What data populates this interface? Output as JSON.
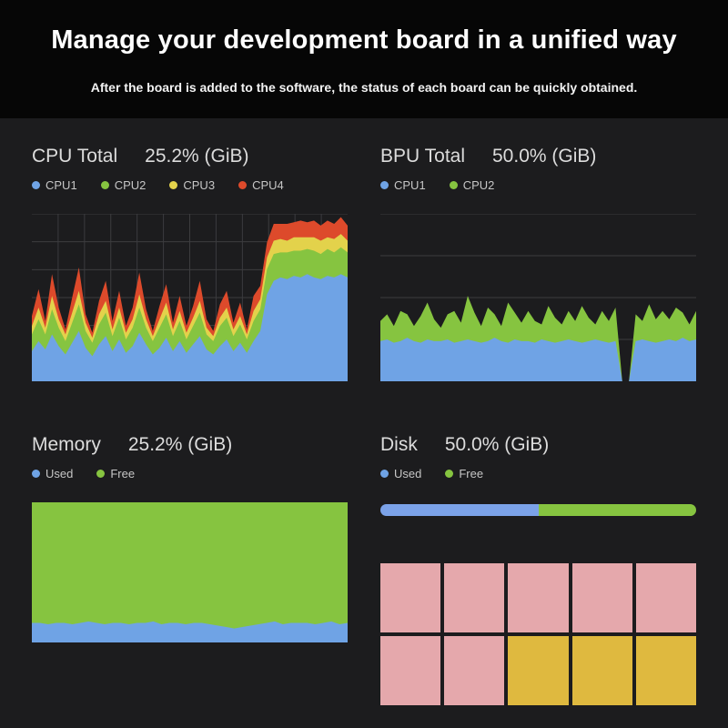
{
  "header": {
    "title": "Manage your development board in a unified way",
    "subtitle": "After the board is added to the software, the status of each board can be quickly obtained."
  },
  "panels": [
    {
      "title": "CPU Total",
      "value": "25.2% (GiB)",
      "legend": [
        {
          "label": "CPU1",
          "color": "#6FA3E5"
        },
        {
          "label": "CPU2",
          "color": "#86C440"
        },
        {
          "label": "CPU3",
          "color": "#E3D24B"
        },
        {
          "label": "CPU4",
          "color": "#DD4A2B"
        }
      ]
    },
    {
      "title": "BPU Total",
      "value": "50.0% (GiB)",
      "legend": [
        {
          "label": "CPU1",
          "color": "#6FA3E5"
        },
        {
          "label": "CPU2",
          "color": "#86C440"
        }
      ]
    },
    {
      "title": "Memory",
      "value": "25.2% (GiB)",
      "legend": [
        {
          "label": "Used",
          "color": "#6FA3E5"
        },
        {
          "label": "Free",
          "color": "#86C440"
        }
      ]
    },
    {
      "title": "Disk",
      "value": "50.0% (GiB)",
      "legend": [
        {
          "label": "Used",
          "color": "#6FA3E5"
        },
        {
          "label": "Free",
          "color": "#86C440"
        }
      ]
    }
  ],
  "chart_data": [
    {
      "type": "area",
      "title": "CPU Total",
      "stacked": true,
      "ylim": [
        0,
        100
      ],
      "grid": {
        "h_lines": 5,
        "v_lines": 11
      },
      "series": [
        {
          "name": "CPU1",
          "color": "#6FA3E5",
          "values": [
            18,
            24,
            19,
            28,
            21,
            16,
            23,
            30,
            20,
            15,
            22,
            27,
            18,
            25,
            17,
            21,
            29,
            22,
            16,
            20,
            26,
            18,
            24,
            17,
            22,
            27,
            19,
            16,
            21,
            25,
            18,
            23,
            17,
            24,
            30,
            52,
            60,
            62,
            61,
            63,
            62,
            64,
            62,
            61,
            63,
            62,
            64,
            62
          ]
        },
        {
          "name": "CPU2",
          "color": "#86C440",
          "values": [
            10,
            13,
            9,
            15,
            11,
            8,
            12,
            16,
            10,
            8,
            12,
            14,
            9,
            13,
            8,
            11,
            15,
            10,
            8,
            12,
            14,
            9,
            12,
            8,
            11,
            14,
            9,
            8,
            12,
            13,
            9,
            11,
            8,
            12,
            13,
            15,
            16,
            15,
            16,
            15,
            16,
            15,
            16,
            15,
            16,
            15,
            16,
            15
          ]
        },
        {
          "name": "CPU3",
          "color": "#E3D24B",
          "values": [
            5,
            7,
            4,
            8,
            5,
            4,
            6,
            8,
            5,
            3,
            6,
            7,
            4,
            6,
            4,
            5,
            8,
            5,
            3,
            5,
            7,
            4,
            6,
            4,
            5,
            7,
            4,
            3,
            5,
            6,
            4,
            5,
            3,
            6,
            6,
            7,
            8,
            8,
            7,
            8,
            8,
            7,
            8,
            8,
            7,
            8,
            8,
            7
          ]
        },
        {
          "name": "CPU4",
          "color": "#DD4A2B",
          "values": [
            6,
            11,
            4,
            13,
            7,
            3,
            9,
            14,
            5,
            3,
            8,
            12,
            5,
            10,
            4,
            7,
            13,
            6,
            3,
            8,
            11,
            4,
            9,
            4,
            7,
            12,
            5,
            3,
            8,
            10,
            4,
            8,
            3,
            9,
            8,
            9,
            10,
            9,
            10,
            9,
            10,
            9,
            10,
            9,
            10,
            9,
            10,
            9
          ]
        }
      ]
    },
    {
      "type": "area",
      "title": "BPU Total",
      "stacked": true,
      "ylim": [
        0,
        100
      ],
      "grid": {
        "h_lines": 3,
        "v_lines": 0
      },
      "series": [
        {
          "name": "CPU1",
          "color": "#6FA3E5",
          "values": [
            24,
            25,
            23,
            24,
            26,
            24,
            23,
            25,
            24,
            24,
            25,
            23,
            24,
            25,
            24,
            23,
            24,
            26,
            24,
            23,
            25,
            24,
            24,
            23,
            25,
            24,
            23,
            24,
            25,
            24,
            23,
            24,
            25,
            24,
            23,
            24,
            0,
            0,
            24,
            25,
            24,
            23,
            24,
            25,
            24,
            26,
            24,
            25
          ]
        },
        {
          "name": "CPU2",
          "color": "#86C440",
          "values": [
            12,
            15,
            10,
            18,
            14,
            9,
            16,
            22,
            13,
            8,
            15,
            19,
            11,
            26,
            17,
            10,
            20,
            14,
            9,
            24,
            16,
            11,
            18,
            13,
            9,
            21,
            15,
            10,
            17,
            12,
            22,
            14,
            9,
            18,
            13,
            20,
            0,
            0,
            16,
            11,
            22,
            14,
            18,
            12,
            20,
            15,
            10,
            17
          ]
        }
      ]
    },
    {
      "type": "area",
      "title": "Memory",
      "stacked": true,
      "ylim": [
        0,
        100
      ],
      "grid": {
        "h_lines": 0,
        "v_lines": 0
      },
      "series": [
        {
          "name": "Used",
          "color": "#6FA3E5",
          "values": [
            14,
            14,
            13,
            14,
            14,
            13,
            14,
            15,
            14,
            13,
            14,
            14,
            13,
            14,
            14,
            15,
            13,
            14,
            14,
            13,
            14,
            14,
            13,
            12,
            11,
            10,
            11,
            12,
            13,
            14,
            15,
            13,
            14,
            14,
            14,
            13,
            14,
            15,
            13,
            14
          ]
        },
        {
          "name": "Free",
          "color": "#86C440",
          "values": [
            86,
            86,
            87,
            86,
            86,
            87,
            86,
            85,
            86,
            87,
            86,
            86,
            87,
            86,
            86,
            85,
            87,
            86,
            86,
            87,
            86,
            86,
            87,
            88,
            89,
            90,
            89,
            88,
            87,
            86,
            85,
            87,
            86,
            86,
            86,
            87,
            86,
            85,
            87,
            86
          ]
        }
      ]
    },
    {
      "type": "disk",
      "title": "Disk",
      "bar": {
        "segments": [
          {
            "name": "Used",
            "pct": 50,
            "color": "#7BA2E8"
          },
          {
            "name": "Free",
            "pct": 50,
            "color": "#86C440"
          }
        ]
      },
      "cells": {
        "columns": 5,
        "colors": [
          "#E5A8AC",
          "#E5A8AC",
          "#E5A8AC",
          "#E5A8AC",
          "#E5A8AC",
          "#E5A8AC",
          "#E5A8AC",
          "#DFB93F",
          "#DFB93F",
          "#DFB93F"
        ]
      }
    }
  ],
  "colors": {
    "background": "#1C1C1E",
    "header_bg": "#060606",
    "grid_line": "#3C3C3F"
  }
}
